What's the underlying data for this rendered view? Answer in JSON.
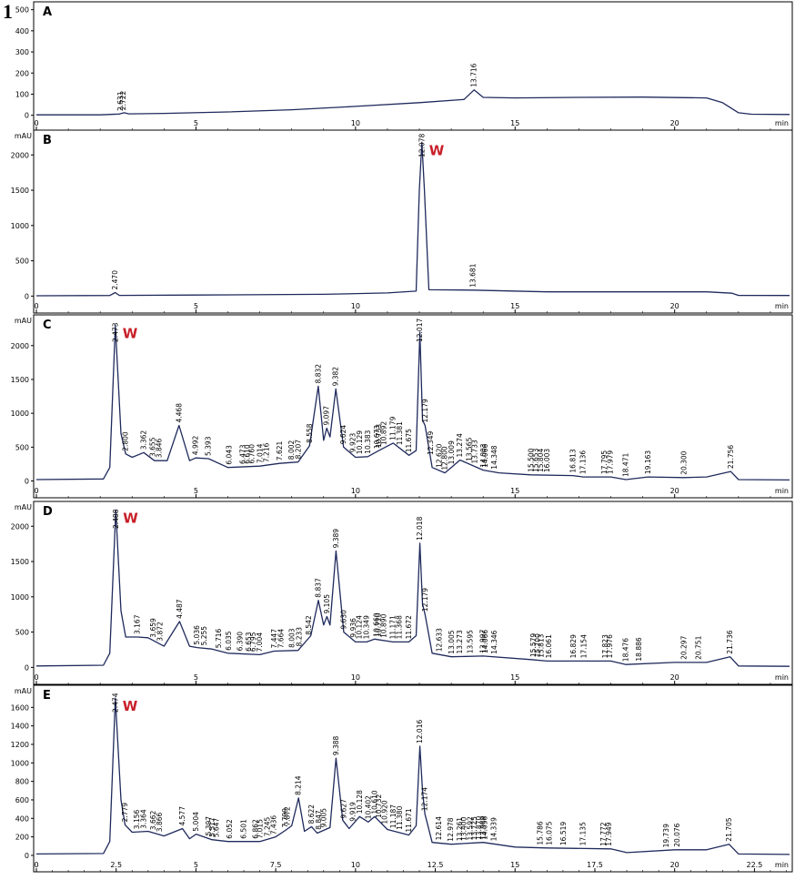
{
  "figure_label": "1",
  "colors": {
    "trace": "#1f2a5c",
    "marker": "#c8202a",
    "axis": "#000000"
  },
  "x_tick_labels": [
    "0",
    "5",
    "10",
    "15",
    "20",
    "min"
  ],
  "x_tick_labels_last": [
    "0",
    "2.5",
    "5",
    "7.5",
    "10",
    "12.5",
    "15",
    "17.5",
    "20",
    "22.5",
    "min"
  ],
  "chart_data": [
    {
      "type": "line",
      "panel": "A",
      "ylabel": "",
      "xlim": [
        0,
        23.6
      ],
      "ylim": [
        -10,
        520
      ],
      "yticks": [
        0,
        100,
        200,
        300,
        400,
        500
      ],
      "x": [
        0,
        2.0,
        2.6,
        2.75,
        2.9,
        4,
        6,
        8,
        10,
        12,
        13.4,
        13.716,
        14.0,
        15,
        17,
        19,
        21,
        21.5,
        22.0,
        22.4,
        23.6
      ],
      "y": [
        2,
        2,
        6,
        12,
        7,
        9,
        16,
        26,
        42,
        60,
        75,
        120,
        85,
        82,
        85,
        86,
        82,
        60,
        12,
        5,
        4
      ],
      "peaks": [
        {
          "x": 2.631,
          "label": "2.631"
        },
        {
          "x": 2.722,
          "label": "2.722"
        },
        {
          "x": 13.716,
          "label": "13.716"
        }
      ],
      "marker": ""
    },
    {
      "type": "line",
      "panel": "B",
      "ylabel": "mAU",
      "xlim": [
        0,
        23.6
      ],
      "ylim": [
        -60,
        2300
      ],
      "yticks": [
        0,
        500,
        1000,
        1500,
        2000
      ],
      "x": [
        0,
        2.3,
        2.47,
        2.6,
        5,
        9,
        11,
        11.9,
        12.0,
        12.078,
        12.16,
        12.3,
        13.681,
        16,
        21,
        21.8,
        22.0,
        23.6
      ],
      "y": [
        5,
        8,
        50,
        10,
        15,
        25,
        45,
        70,
        1500,
        2180,
        1500,
        90,
        85,
        60,
        60,
        40,
        10,
        8
      ],
      "peaks": [
        {
          "x": 2.47,
          "label": "2.470"
        },
        {
          "x": 12.078,
          "label": "12.078"
        },
        {
          "x": 13.681,
          "label": "13.681"
        }
      ],
      "marker": "W"
    },
    {
      "type": "line",
      "panel": "C",
      "ylabel": "mAU",
      "xlim": [
        0,
        23.6
      ],
      "ylim": [
        -60,
        2400
      ],
      "yticks": [
        0,
        500,
        1000,
        1500,
        2000
      ],
      "x": [
        0,
        2.1,
        2.3,
        2.473,
        2.65,
        2.8,
        3.0,
        3.362,
        3.7,
        4.1,
        4.468,
        4.8,
        4.992,
        5.393,
        6.0,
        7.0,
        7.621,
        8.2,
        8.558,
        8.832,
        9.0,
        9.097,
        9.2,
        9.382,
        9.624,
        10.0,
        10.383,
        10.733,
        11.179,
        11.675,
        11.9,
        12.017,
        12.1,
        12.179,
        12.4,
        12.8,
        13.0,
        13.274,
        14.0,
        14.5,
        15.5,
        16.813,
        17.136,
        18.0,
        18.471,
        19.163,
        20.3,
        21.0,
        21.756,
        22.0,
        23.6
      ],
      "y": [
        20,
        30,
        200,
        2300,
        700,
        400,
        350,
        420,
        300,
        300,
        820,
        300,
        340,
        330,
        200,
        220,
        260,
        280,
        520,
        1400,
        600,
        780,
        650,
        1360,
        500,
        350,
        360,
        450,
        560,
        380,
        450,
        2200,
        900,
        820,
        200,
        120,
        200,
        310,
        160,
        120,
        90,
        80,
        60,
        60,
        20,
        60,
        50,
        60,
        140,
        20,
        15
      ],
      "peaks": [
        {
          "x": 2.473,
          "label": "2.473"
        },
        {
          "x": 2.8,
          "label": "2.800"
        },
        {
          "x": 3.362,
          "label": "3.362"
        },
        {
          "x": 3.655,
          "label": "3.655"
        },
        {
          "x": 3.846,
          "label": "3.846"
        },
        {
          "x": 4.468,
          "label": "4.468"
        },
        {
          "x": 4.992,
          "label": "4.992"
        },
        {
          "x": 5.393,
          "label": "5.393"
        },
        {
          "x": 6.043,
          "label": "6.043"
        },
        {
          "x": 6.473,
          "label": "6.473"
        },
        {
          "x": 6.61,
          "label": "6.610"
        },
        {
          "x": 6.76,
          "label": "6.760"
        },
        {
          "x": 7.014,
          "label": "7.014"
        },
        {
          "x": 7.216,
          "label": "7.216"
        },
        {
          "x": 7.621,
          "label": "7.621"
        },
        {
          "x": 8.002,
          "label": "8.002"
        },
        {
          "x": 8.207,
          "label": "8.207"
        },
        {
          "x": 8.558,
          "label": "8.558"
        },
        {
          "x": 8.832,
          "label": "8.832"
        },
        {
          "x": 9.097,
          "label": "9.097"
        },
        {
          "x": 9.382,
          "label": "9.382"
        },
        {
          "x": 9.624,
          "label": "9.624"
        },
        {
          "x": 9.923,
          "label": "9.923"
        },
        {
          "x": 10.129,
          "label": "10.129"
        },
        {
          "x": 10.383,
          "label": "10.383"
        },
        {
          "x": 10.673,
          "label": "10.673"
        },
        {
          "x": 10.733,
          "label": "10.733"
        },
        {
          "x": 10.892,
          "label": "10.892"
        },
        {
          "x": 11.179,
          "label": "11.179"
        },
        {
          "x": 11.381,
          "label": "11.381"
        },
        {
          "x": 11.675,
          "label": "11.675"
        },
        {
          "x": 12.017,
          "label": "12.017"
        },
        {
          "x": 12.179,
          "label": "12.179"
        },
        {
          "x": 12.349,
          "label": "12.349"
        },
        {
          "x": 12.62,
          "label": "12.620"
        },
        {
          "x": 12.8,
          "label": "12.800"
        },
        {
          "x": 13.009,
          "label": "13.009"
        },
        {
          "x": 13.274,
          "label": "13.274"
        },
        {
          "x": 13.565,
          "label": "13.565"
        },
        {
          "x": 13.733,
          "label": "13.733"
        },
        {
          "x": 14.003,
          "label": "14.003"
        },
        {
          "x": 14.066,
          "label": "14.066"
        },
        {
          "x": 14.348,
          "label": "14.348"
        },
        {
          "x": 15.5,
          "label": "15.500"
        },
        {
          "x": 15.653,
          "label": "15.653"
        },
        {
          "x": 15.804,
          "label": "15.804"
        },
        {
          "x": 16.003,
          "label": "16.003"
        },
        {
          "x": 16.813,
          "label": "16.813"
        },
        {
          "x": 17.136,
          "label": "17.136"
        },
        {
          "x": 17.795,
          "label": "17.795"
        },
        {
          "x": 17.979,
          "label": "17.979"
        },
        {
          "x": 18.471,
          "label": "18.471"
        },
        {
          "x": 19.163,
          "label": "19.163"
        },
        {
          "x": 20.3,
          "label": "20.300"
        },
        {
          "x": 21.756,
          "label": "21.756"
        }
      ],
      "marker": "W"
    },
    {
      "type": "line",
      "panel": "D",
      "ylabel": "mAU",
      "xlim": [
        0,
        23.6
      ],
      "ylim": [
        -60,
        2300
      ],
      "yticks": [
        0,
        500,
        1000,
        1500,
        2000
      ],
      "x": [
        0,
        2.1,
        2.3,
        2.488,
        2.65,
        2.8,
        3.167,
        3.5,
        4.0,
        4.487,
        4.8,
        5.036,
        5.5,
        6.0,
        7.0,
        7.447,
        8.2,
        8.6,
        8.837,
        9.0,
        9.105,
        9.2,
        9.389,
        9.63,
        10.0,
        10.349,
        10.6,
        11.171,
        11.672,
        11.9,
        12.018,
        12.1,
        12.179,
        12.4,
        13.0,
        14.0,
        15.5,
        16.0,
        18.0,
        18.476,
        20.0,
        21.0,
        21.736,
        22.0,
        23.6
      ],
      "y": [
        20,
        30,
        200,
        2230,
        800,
        430,
        430,
        420,
        300,
        650,
        300,
        280,
        260,
        200,
        180,
        230,
        240,
        450,
        950,
        600,
        720,
        600,
        1650,
        500,
        360,
        360,
        400,
        360,
        360,
        450,
        1760,
        900,
        750,
        200,
        150,
        160,
        110,
        90,
        90,
        40,
        70,
        70,
        150,
        20,
        15
      ],
      "peaks": [
        {
          "x": 2.488,
          "label": "2.488"
        },
        {
          "x": 3.167,
          "label": "3.167"
        },
        {
          "x": 3.659,
          "label": "3.659"
        },
        {
          "x": 3.872,
          "label": "3.872"
        },
        {
          "x": 4.487,
          "label": "4.487"
        },
        {
          "x": 5.036,
          "label": "5.036"
        },
        {
          "x": 5.255,
          "label": "5.255"
        },
        {
          "x": 5.716,
          "label": "5.716"
        },
        {
          "x": 6.035,
          "label": "6.035"
        },
        {
          "x": 6.39,
          "label": "6.390"
        },
        {
          "x": 6.653,
          "label": "6.653"
        },
        {
          "x": 6.795,
          "label": "6.795"
        },
        {
          "x": 7.004,
          "label": "7.004"
        },
        {
          "x": 7.447,
          "label": "7.447"
        },
        {
          "x": 7.664,
          "label": "7.664"
        },
        {
          "x": 8.003,
          "label": "8.003"
        },
        {
          "x": 8.233,
          "label": "8.233"
        },
        {
          "x": 8.542,
          "label": "8.542"
        },
        {
          "x": 8.837,
          "label": "8.837"
        },
        {
          "x": 9.105,
          "label": "9.105"
        },
        {
          "x": 9.389,
          "label": "9.389"
        },
        {
          "x": 9.63,
          "label": "9.630"
        },
        {
          "x": 9.936,
          "label": "9.936"
        },
        {
          "x": 10.124,
          "label": "10.124"
        },
        {
          "x": 10.349,
          "label": "10.349"
        },
        {
          "x": 10.66,
          "label": "10.660"
        },
        {
          "x": 10.71,
          "label": "10.710"
        },
        {
          "x": 10.89,
          "label": "10.890"
        },
        {
          "x": 11.171,
          "label": "11.171"
        },
        {
          "x": 11.368,
          "label": "11.368"
        },
        {
          "x": 11.672,
          "label": "11.672"
        },
        {
          "x": 12.018,
          "label": "12.018"
        },
        {
          "x": 12.179,
          "label": "12.179"
        },
        {
          "x": 12.633,
          "label": "12.633"
        },
        {
          "x": 13.005,
          "label": "13.005"
        },
        {
          "x": 13.273,
          "label": "13.273"
        },
        {
          "x": 13.595,
          "label": "13.595"
        },
        {
          "x": 13.997,
          "label": "13.997"
        },
        {
          "x": 14.066,
          "label": "14.066"
        },
        {
          "x": 14.346,
          "label": "14.346"
        },
        {
          "x": 15.579,
          "label": "15.579"
        },
        {
          "x": 15.7,
          "label": "15.700"
        },
        {
          "x": 15.813,
          "label": "15.813"
        },
        {
          "x": 16.061,
          "label": "16.061"
        },
        {
          "x": 16.829,
          "label": "16.829"
        },
        {
          "x": 17.154,
          "label": "17.154"
        },
        {
          "x": 17.823,
          "label": "17.823"
        },
        {
          "x": 17.976,
          "label": "17.976"
        },
        {
          "x": 18.476,
          "label": "18.476"
        },
        {
          "x": 18.886,
          "label": "18.886"
        },
        {
          "x": 20.297,
          "label": "20.297"
        },
        {
          "x": 20.751,
          "label": "20.751"
        },
        {
          "x": 21.736,
          "label": "21.736"
        }
      ],
      "marker": "W"
    },
    {
      "type": "line",
      "panel": "E",
      "ylabel": "mAU",
      "xlim": [
        0,
        23.6
      ],
      "ylim": [
        -40,
        1800
      ],
      "yticks": [
        0,
        200,
        400,
        600,
        800,
        1000,
        1200,
        1400,
        1600
      ],
      "x": [
        0,
        2.1,
        2.3,
        2.474,
        2.65,
        2.779,
        3.0,
        3.5,
        4.0,
        4.577,
        4.8,
        5.004,
        5.5,
        6.0,
        7.0,
        7.5,
        7.8,
        8.0,
        8.214,
        8.4,
        8.622,
        8.8,
        9.2,
        9.388,
        9.6,
        9.8,
        10.128,
        10.4,
        10.6,
        11.0,
        11.671,
        11.9,
        12.016,
        12.1,
        12.174,
        12.4,
        13.0,
        14.0,
        15.0,
        16.0,
        18.0,
        18.5,
        20.0,
        21.0,
        21.705,
        22.0,
        23.6
      ],
      "y": [
        15,
        20,
        150,
        1700,
        600,
        330,
        250,
        260,
        210,
        290,
        180,
        230,
        170,
        150,
        150,
        200,
        270,
        320,
        620,
        260,
        310,
        240,
        300,
        1050,
        380,
        290,
        420,
        360,
        420,
        280,
        220,
        320,
        1180,
        700,
        450,
        140,
        120,
        140,
        90,
        80,
        70,
        30,
        60,
        60,
        120,
        15,
        10
      ],
      "peaks": [
        {
          "x": 2.474,
          "label": "2.474"
        },
        {
          "x": 2.779,
          "label": "2.779"
        },
        {
          "x": 3.156,
          "label": "3.156"
        },
        {
          "x": 3.364,
          "label": "3.364"
        },
        {
          "x": 3.662,
          "label": "3.662"
        },
        {
          "x": 3.866,
          "label": "3.866"
        },
        {
          "x": 4.577,
          "label": "4.577"
        },
        {
          "x": 5.004,
          "label": "5.004"
        },
        {
          "x": 5.397,
          "label": "5.397"
        },
        {
          "x": 5.517,
          "label": "5.517"
        },
        {
          "x": 5.647,
          "label": "5.647"
        },
        {
          "x": 6.052,
          "label": "6.052"
        },
        {
          "x": 6.501,
          "label": "6.501"
        },
        {
          "x": 6.862,
          "label": "6.862"
        },
        {
          "x": 7.015,
          "label": "7.015"
        },
        {
          "x": 7.245,
          "label": "7.245"
        },
        {
          "x": 7.436,
          "label": "7.436"
        },
        {
          "x": 7.799,
          "label": "7.799"
        },
        {
          "x": 7.872,
          "label": "7.872"
        },
        {
          "x": 8.214,
          "label": "8.214"
        },
        {
          "x": 8.622,
          "label": "8.622"
        },
        {
          "x": 8.847,
          "label": "8.847"
        },
        {
          "x": 9.005,
          "label": "9.005"
        },
        {
          "x": 9.388,
          "label": "9.388"
        },
        {
          "x": 9.627,
          "label": "9.627"
        },
        {
          "x": 9.919,
          "label": "9.919"
        },
        {
          "x": 10.128,
          "label": "10.128"
        },
        {
          "x": 10.402,
          "label": "10.402"
        },
        {
          "x": 10.61,
          "label": "10.610"
        },
        {
          "x": 10.732,
          "label": "10.732"
        },
        {
          "x": 10.92,
          "label": "10.920"
        },
        {
          "x": 11.187,
          "label": "11.187"
        },
        {
          "x": 11.38,
          "label": "11.380"
        },
        {
          "x": 11.671,
          "label": "11.671"
        },
        {
          "x": 12.016,
          "label": "12.016"
        },
        {
          "x": 12.174,
          "label": "12.174"
        },
        {
          "x": 12.614,
          "label": "12.614"
        },
        {
          "x": 12.978,
          "label": "12.978"
        },
        {
          "x": 13.261,
          "label": "13.261"
        },
        {
          "x": 13.4,
          "label": "13.400"
        },
        {
          "x": 13.592,
          "label": "13.592"
        },
        {
          "x": 13.725,
          "label": "13.725"
        },
        {
          "x": 13.87,
          "label": "13.870"
        },
        {
          "x": 13.989,
          "label": "13.989"
        },
        {
          "x": 14.056,
          "label": "14.056"
        },
        {
          "x": 14.339,
          "label": "14.339"
        },
        {
          "x": 15.786,
          "label": "15.786"
        },
        {
          "x": 16.075,
          "label": "16.075"
        },
        {
          "x": 16.519,
          "label": "16.519"
        },
        {
          "x": 17.135,
          "label": "17.135"
        },
        {
          "x": 17.772,
          "label": "17.772"
        },
        {
          "x": 17.949,
          "label": "17.949"
        },
        {
          "x": 19.739,
          "label": "19.739"
        },
        {
          "x": 20.076,
          "label": "20.076"
        },
        {
          "x": 21.705,
          "label": "21.705"
        }
      ],
      "marker": "W"
    }
  ]
}
